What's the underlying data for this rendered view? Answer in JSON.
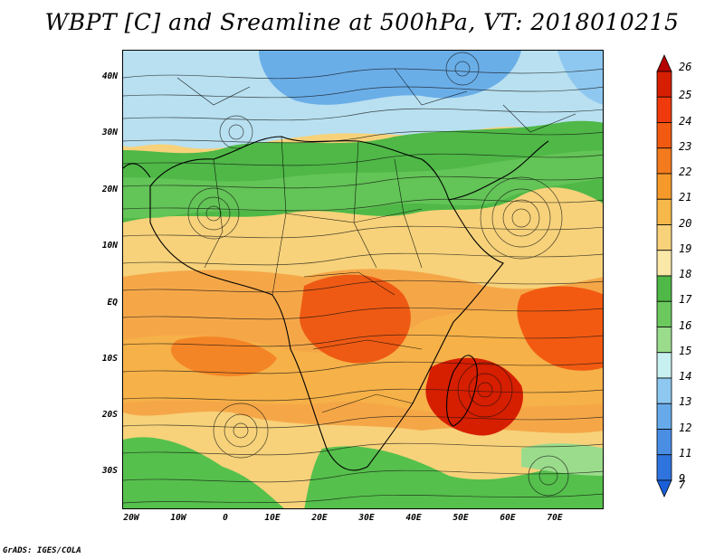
{
  "title": "WBPT [C] and Sreamline at 500hPa, VT: 2018010215",
  "footer": "GrADS: IGES/COLA",
  "lat_labels": [
    {
      "text": "40N"
    },
    {
      "text": "30N"
    },
    {
      "text": "20N"
    },
    {
      "text": "10N"
    },
    {
      "text": "EQ"
    },
    {
      "text": "10S"
    },
    {
      "text": "20S"
    },
    {
      "text": "30S"
    }
  ],
  "lon_labels": [
    {
      "text": "20W"
    },
    {
      "text": "10W"
    },
    {
      "text": "0"
    },
    {
      "text": "10E"
    },
    {
      "text": "20E"
    },
    {
      "text": "30E"
    },
    {
      "text": "40E"
    },
    {
      "text": "50E"
    },
    {
      "text": "60E"
    },
    {
      "text": "70E"
    }
  ],
  "colorbar": {
    "labels": [
      "26",
      "25",
      "24",
      "23",
      "22",
      "21",
      "20",
      "19",
      "18",
      "17",
      "16",
      "15",
      "14",
      "13",
      "12",
      "11",
      "9",
      "7"
    ],
    "colors": [
      "#b50000",
      "#d61e00",
      "#ee3a0c",
      "#f25a12",
      "#f47a1e",
      "#f59a2a",
      "#f6b84a",
      "#f7d27a",
      "#f9e8a8",
      "#4fb847",
      "#6cc95e",
      "#9bdc8c",
      "#c8f0f0",
      "#8ec8f0",
      "#66aaea",
      "#4a8ee4",
      "#2f74de",
      "#1b5fd8"
    ]
  },
  "regions": [
    {
      "name": "north-cold",
      "color": "#6aaee8"
    },
    {
      "name": "north-cool",
      "color": "#b8e0f0"
    },
    {
      "name": "green-band",
      "color": "#4fb847"
    },
    {
      "name": "tropics",
      "color": "#f7d27a"
    },
    {
      "name": "warm",
      "color": "#f5a040"
    },
    {
      "name": "hot",
      "color": "#ee5a14"
    },
    {
      "name": "south-green",
      "color": "#55c04c"
    }
  ]
}
